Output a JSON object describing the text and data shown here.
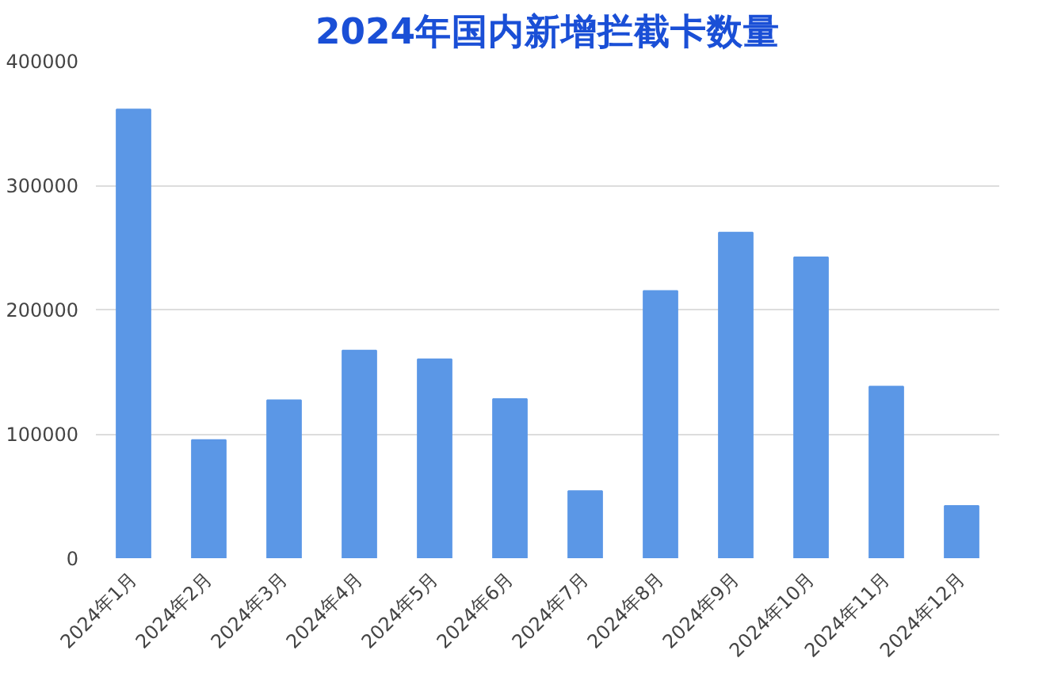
{
  "chart_data": {
    "type": "bar",
    "title": "2024年国内新增拦截卡数量",
    "categories": [
      "2024年1月",
      "2024年2月",
      "2024年3月",
      "2024年4月",
      "2024年5月",
      "2024年6月",
      "2024年7月",
      "2024年8月",
      "2024年9月",
      "2024年10月",
      "2024年11月",
      "2024年12月"
    ],
    "values": [
      361000,
      95000,
      127000,
      167000,
      160000,
      128000,
      54000,
      215000,
      262000,
      242000,
      138000,
      42000
    ],
    "color": "#5b97e6",
    "ylim": [
      0,
      400000
    ],
    "yticks": [
      0,
      100000,
      200000,
      300000,
      400000
    ],
    "grid": "y"
  }
}
